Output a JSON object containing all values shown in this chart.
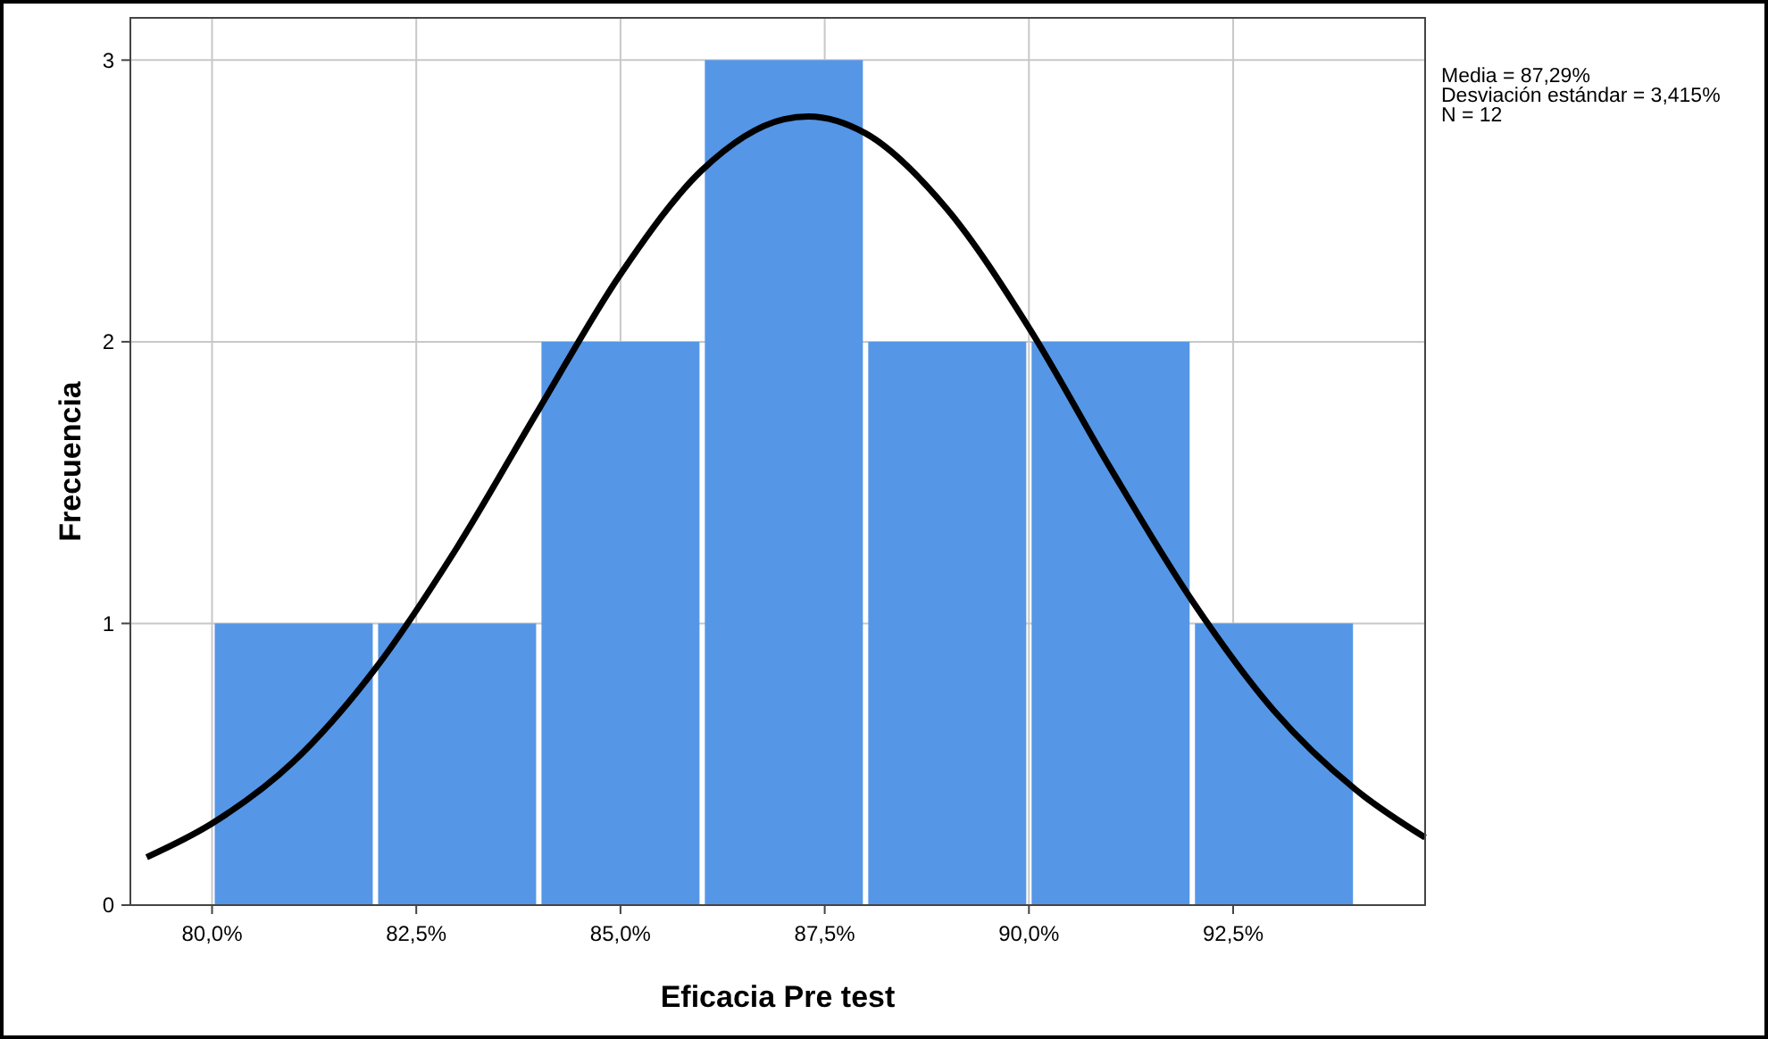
{
  "chart_data": {
    "type": "histogram",
    "xlabel": "Eficacia Pre test",
    "ylabel": "Frecuencia",
    "annotations": [
      "Media = 87,29%",
      "Desviación estándar = 3,415%",
      "N = 12"
    ],
    "xlim": [
      79.0,
      94.85
    ],
    "ylim": [
      0,
      3.15
    ],
    "xticks": [
      {
        "value": 80,
        "label": "80,0%"
      },
      {
        "value": 82.5,
        "label": "82,5%"
      },
      {
        "value": 85,
        "label": "85,0%"
      },
      {
        "value": 87.5,
        "label": "87,5%"
      },
      {
        "value": 90,
        "label": "90,0%"
      },
      {
        "value": 92.5,
        "label": "92,5%"
      }
    ],
    "yticks": [
      0,
      1,
      2,
      3
    ],
    "grid": true,
    "series": [
      {
        "bins": [
          80,
          82,
          84,
          86,
          88,
          90,
          92,
          94
        ],
        "values": [
          1,
          1,
          2,
          3,
          2,
          2,
          1
        ],
        "color": "#5596e6"
      },
      {
        "type": "line",
        "color": "#000000",
        "x": [
          79.2,
          80,
          81,
          82,
          83,
          84,
          85,
          86,
          87,
          87.3,
          88,
          89,
          90,
          91,
          92,
          93,
          94,
          94.85
        ],
        "values": [
          0.17,
          0.29,
          0.51,
          0.84,
          1.27,
          1.76,
          2.24,
          2.61,
          2.79,
          2.8,
          2.74,
          2.47,
          2.05,
          1.55,
          1.08,
          0.69,
          0.41,
          0.24
        ]
      }
    ]
  }
}
